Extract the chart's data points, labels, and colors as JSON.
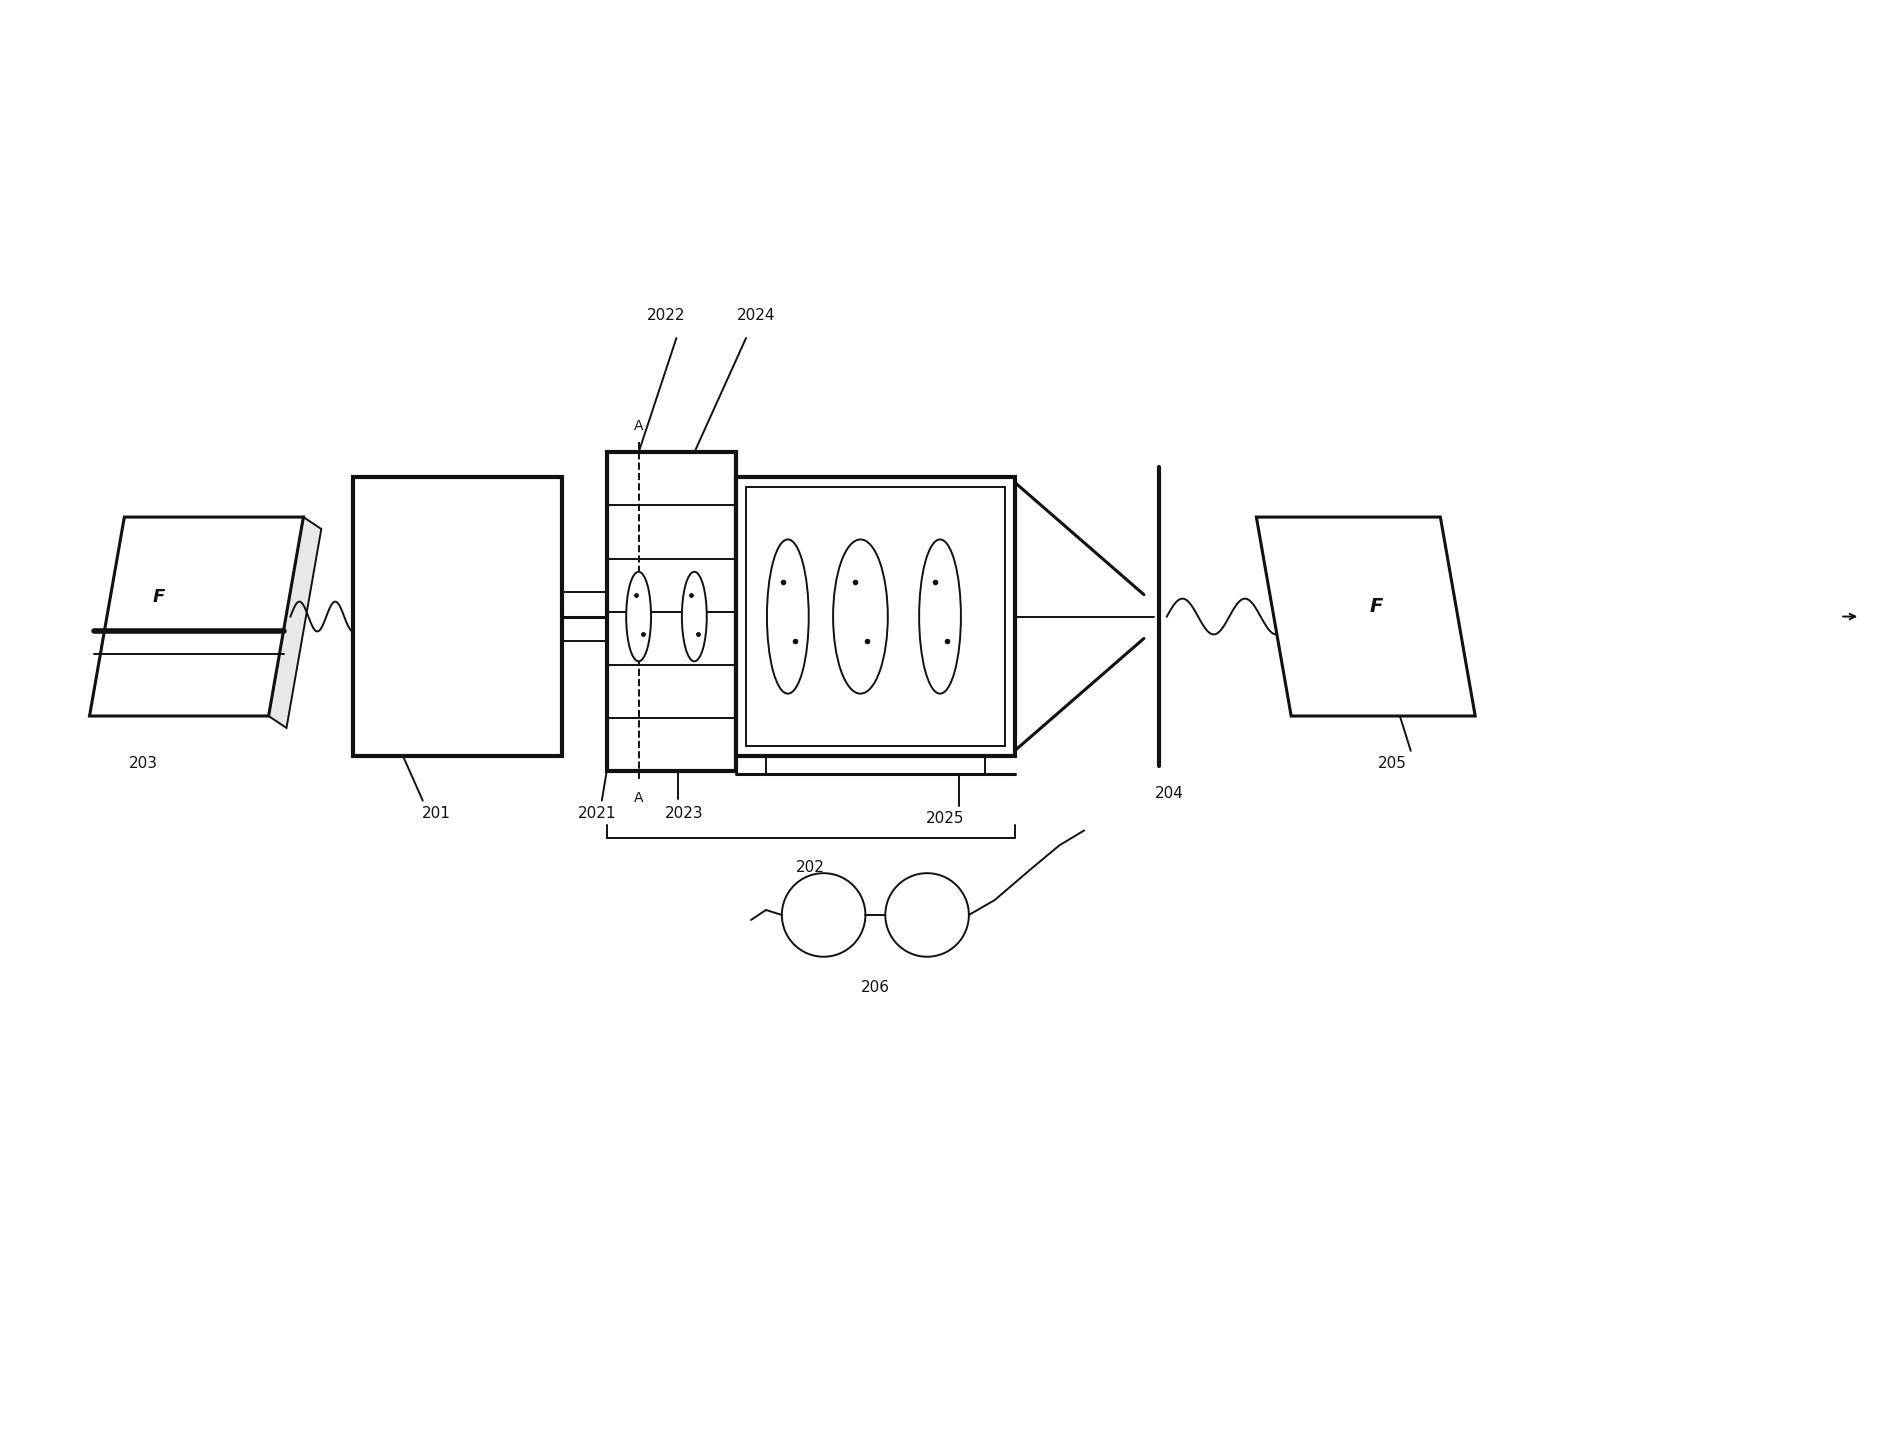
{
  "bg_color": "#ffffff",
  "line_color": "#111111",
  "lw_main": 2.2,
  "lw_thick": 3.0,
  "lw_thin": 1.4,
  "font_size": 11,
  "diagram_y": 6.5,
  "xlim": [
    0,
    19
  ],
  "ylim": [
    0,
    14.36
  ]
}
